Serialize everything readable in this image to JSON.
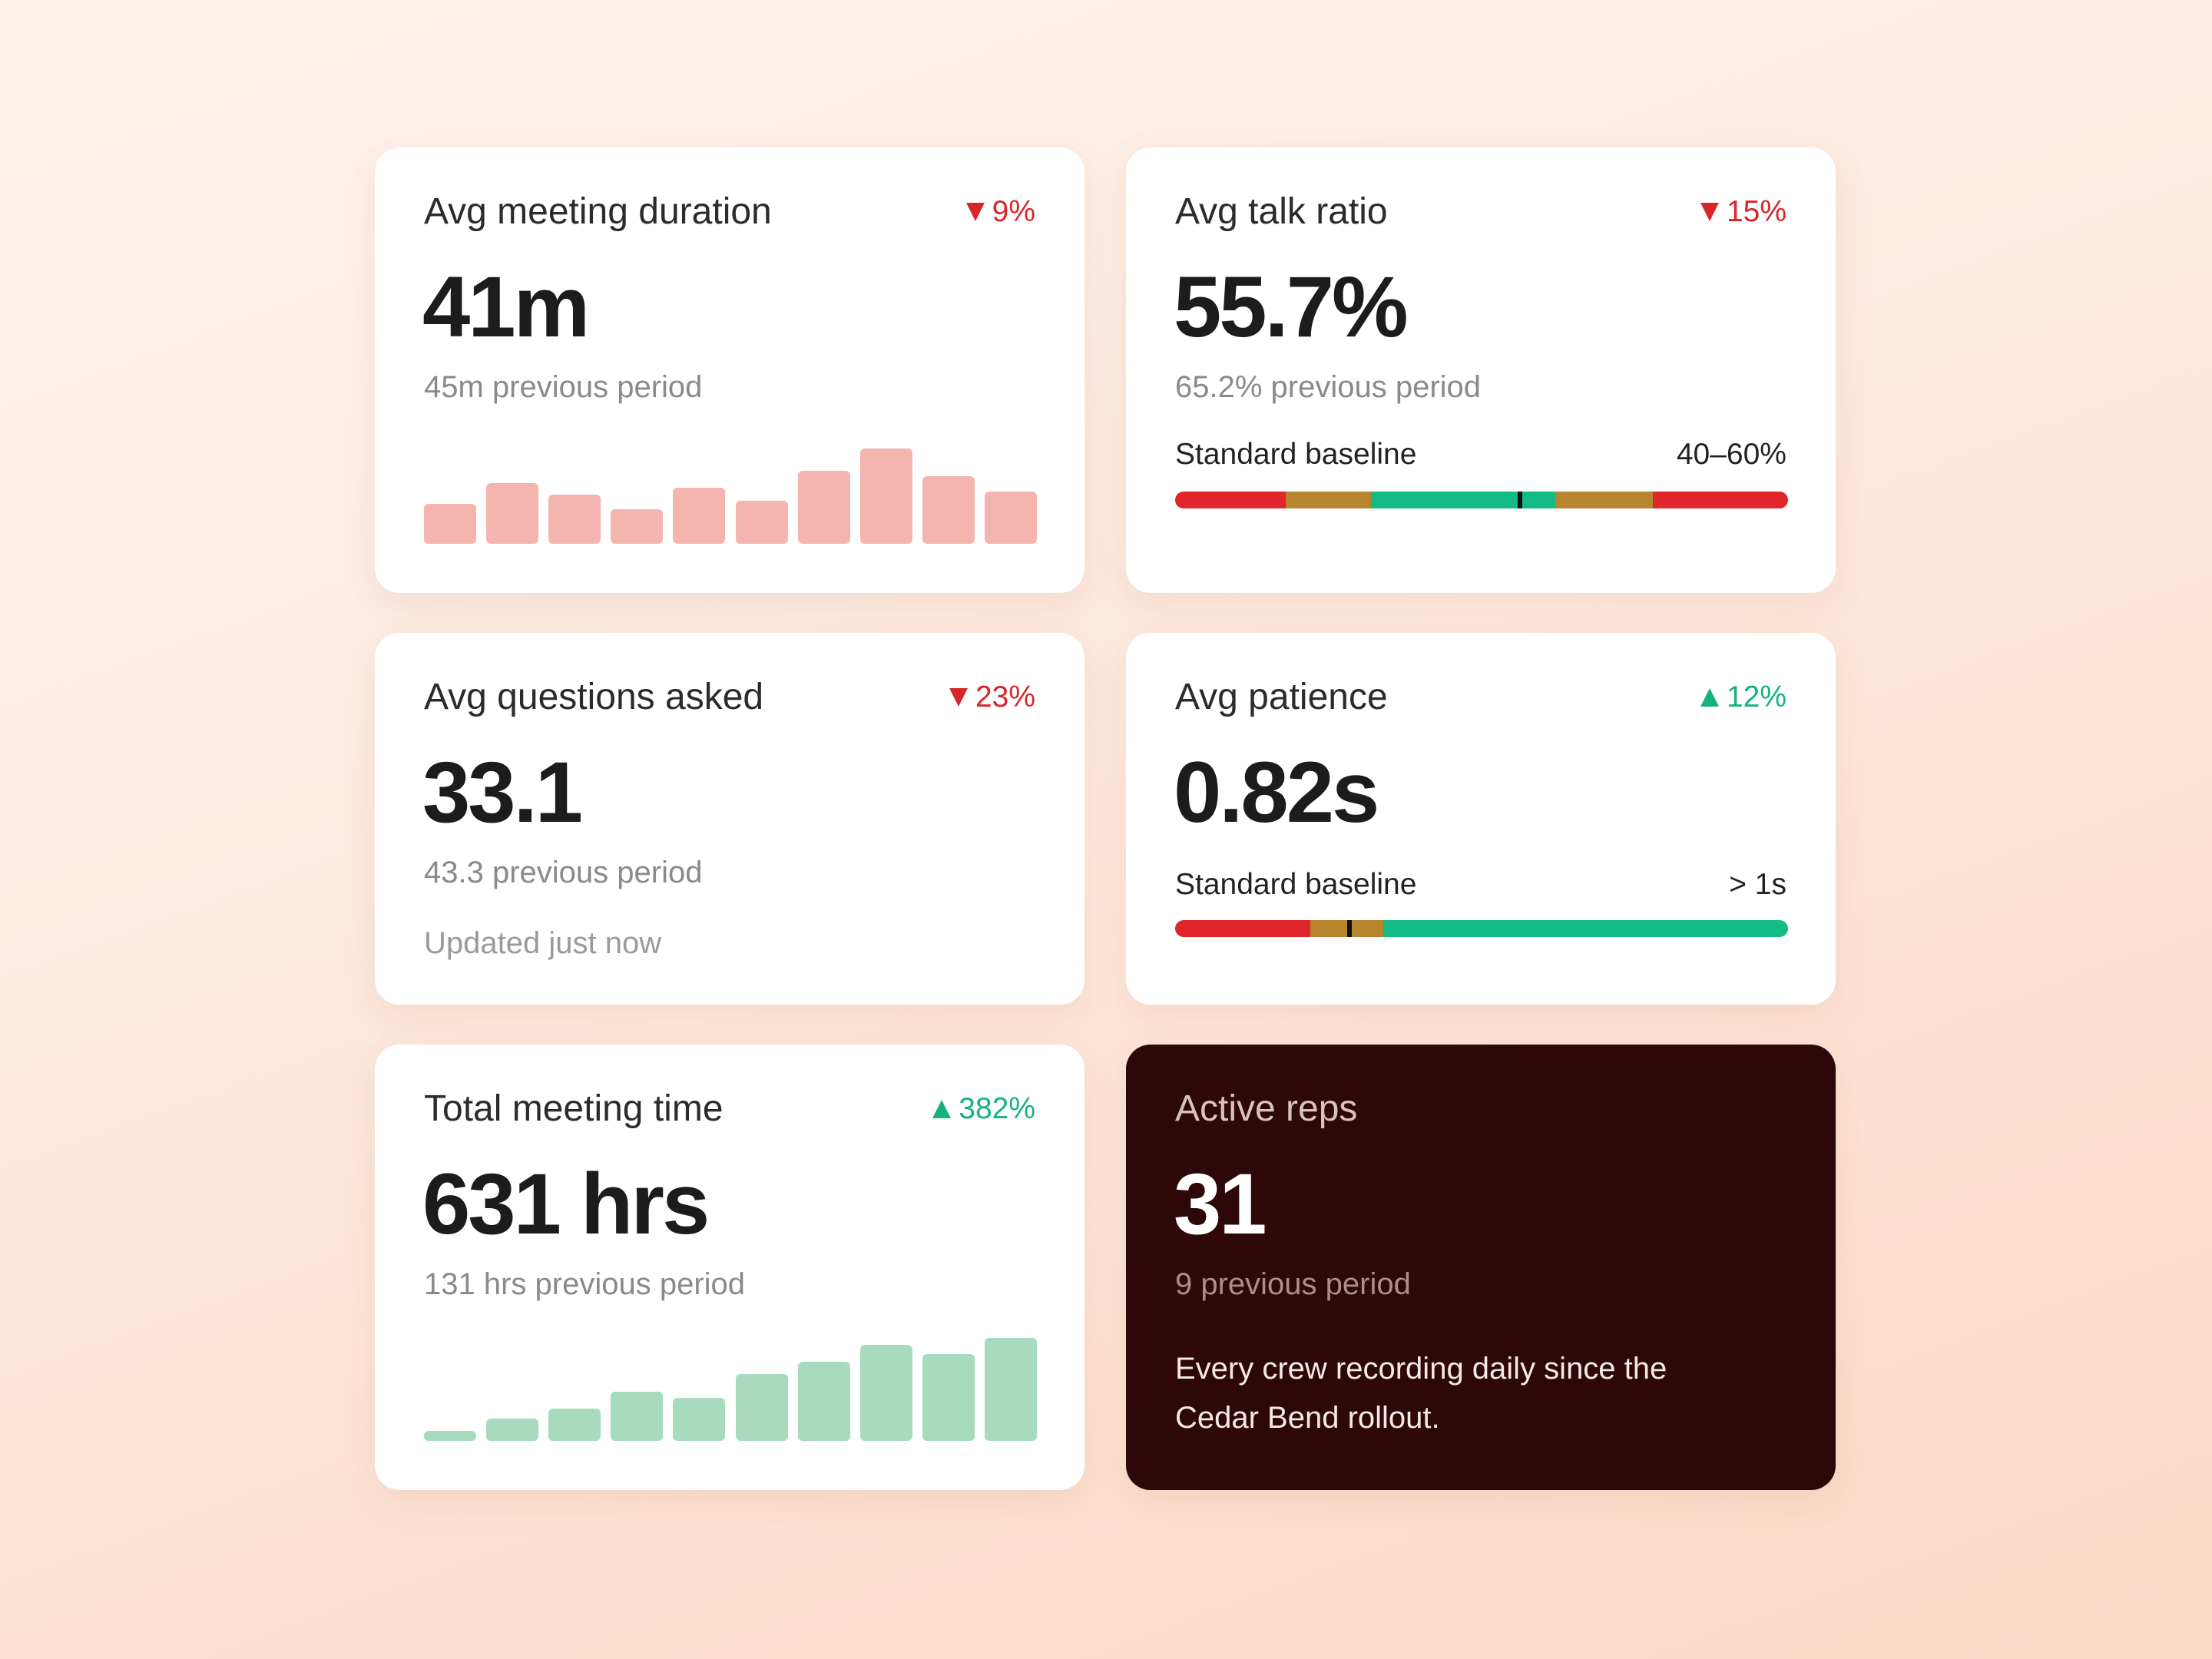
{
  "colors": {
    "down": "#d7262a",
    "up": "#14b37d",
    "gauge_red": "#e0262b",
    "gauge_amber": "#b8852f",
    "gauge_green": "#13bb86",
    "bar_pink": "#f4b5ae",
    "bar_green": "#a8dbbe",
    "dark_card": "#2e0708"
  },
  "cards": {
    "duration": {
      "title": "Avg meeting duration",
      "delta": "9%",
      "direction": "down",
      "value": "41m",
      "previous": "45m previous period",
      "bars": [
        0.42,
        0.64,
        0.52,
        0.36,
        0.59,
        0.45,
        0.77,
        1.0,
        0.71,
        0.55
      ]
    },
    "talk_ratio": {
      "title": "Avg talk ratio",
      "delta": "15%",
      "direction": "down",
      "value": "55.7%",
      "previous": "65.2% previous period",
      "baseline_label": "Standard baseline",
      "baseline_range": "40–60%"
    },
    "questions": {
      "title": "Avg questions asked",
      "delta": "23%",
      "direction": "down",
      "value": "33.1",
      "previous": "43.3 previous period",
      "updated": "Updated just now"
    },
    "patience": {
      "title": "Avg patience",
      "delta": "12%",
      "direction": "up",
      "value": "0.82s",
      "baseline_label": "Standard baseline",
      "baseline_range": "> 1s"
    },
    "total_time": {
      "title": "Total meeting time",
      "delta": "382%",
      "direction": "up",
      "value": "631 hrs",
      "previous": "131 hrs previous period",
      "bars": [
        0.1,
        0.22,
        0.31,
        0.48,
        0.42,
        0.65,
        0.77,
        0.93,
        0.84,
        1.0
      ]
    },
    "active_reps": {
      "title": "Active reps",
      "value": "31",
      "previous": "9 previous period",
      "note": "Every crew recording daily since the Cedar Bend rollout."
    }
  }
}
